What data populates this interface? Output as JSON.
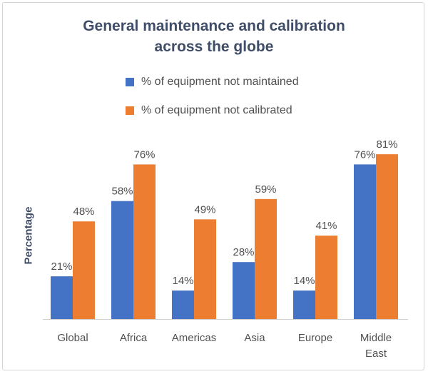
{
  "chart_data": {
    "type": "bar",
    "title": "General maintenance and calibration across the globe",
    "title_lines": [
      "General maintenance and calibration",
      "across the globe"
    ],
    "xlabel": "",
    "ylabel": "Percentage",
    "ylim": [
      0,
      100
    ],
    "grid": false,
    "legend_position": "top",
    "categories": [
      [
        "Global"
      ],
      [
        "Africa"
      ],
      [
        "Americas"
      ],
      [
        "Asia"
      ],
      [
        "Europe"
      ],
      [
        "Middle",
        "East"
      ]
    ],
    "series": [
      {
        "name": "% of equipment not maintained",
        "color": "#4472c4",
        "values": [
          21,
          58,
          14,
          28,
          14,
          76
        ],
        "labels": [
          "21%",
          "58%",
          "14%",
          "28%",
          "14%",
          "76%"
        ]
      },
      {
        "name": "% of equipment not calibrated",
        "color": "#ed7d31",
        "values": [
          48,
          76,
          49,
          59,
          41,
          81
        ],
        "labels": [
          "48%",
          "76%",
          "49%",
          "59%",
          "41%",
          "81%"
        ]
      }
    ]
  }
}
